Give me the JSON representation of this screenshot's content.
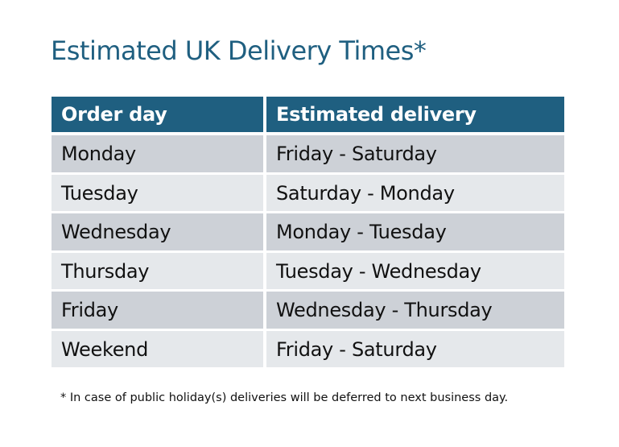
{
  "title": "Estimated UK Delivery Times*",
  "table": {
    "headers": [
      "Order day",
      "Estimated delivery"
    ],
    "rows": [
      [
        "Monday",
        "Friday - Saturday"
      ],
      [
        "Tuesday",
        "Saturday - Monday"
      ],
      [
        "Wednesday",
        "Monday - Tuesday"
      ],
      [
        "Thursday",
        "Tuesday - Wednesday"
      ],
      [
        "Friday",
        "Wednesday - Thursday"
      ],
      [
        "Weekend",
        "Friday - Saturday"
      ]
    ]
  },
  "footnote": "* In case of public holiday(s) deliveries will be deferred to next business day.",
  "colors": {
    "header": "#1f5f80",
    "row_dark": "#cdd1d7",
    "row_light": "#e5e8eb"
  }
}
